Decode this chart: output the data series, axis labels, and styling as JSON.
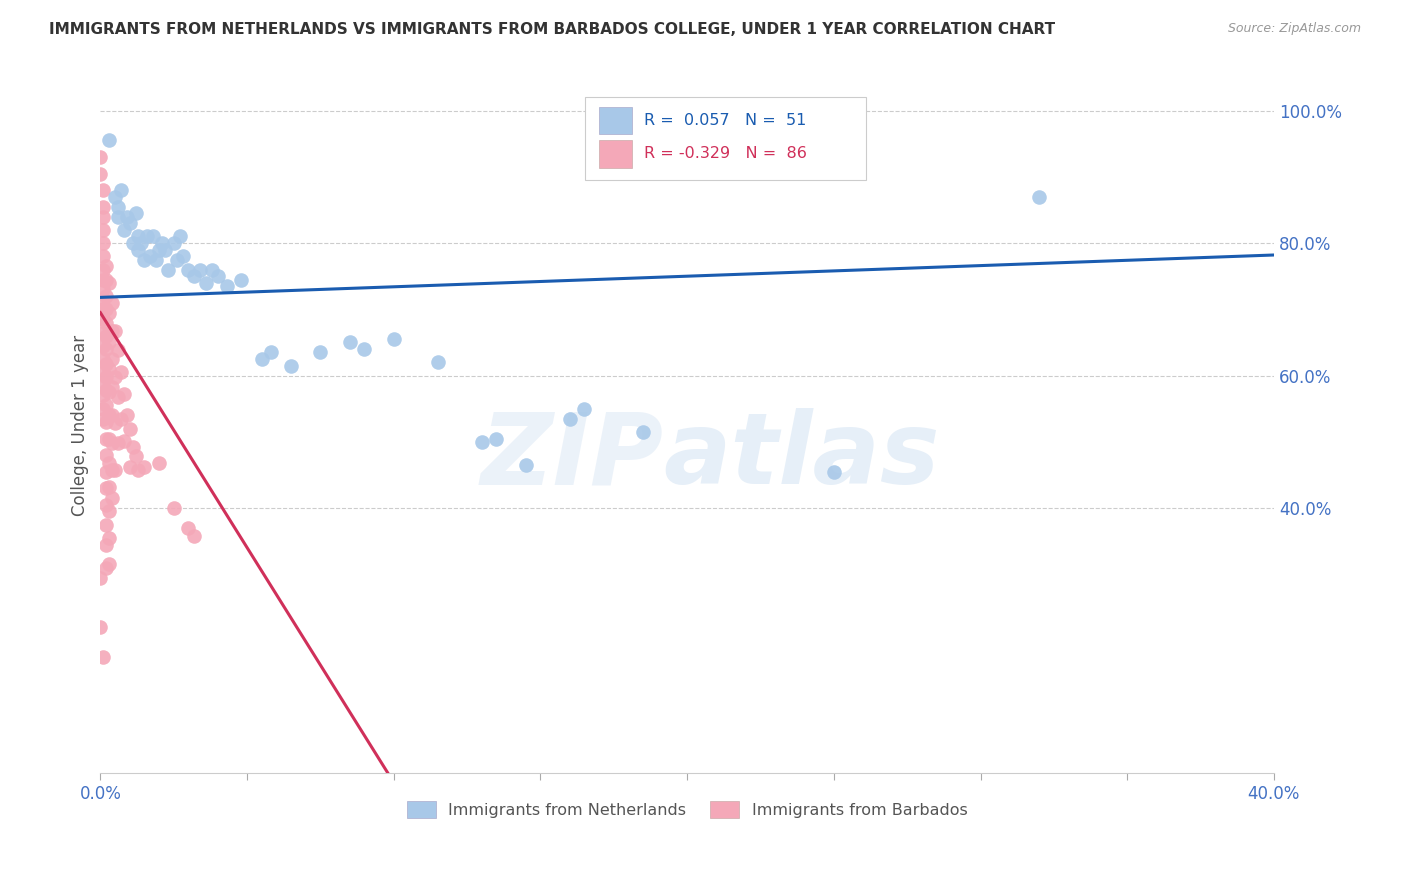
{
  "title": "IMMIGRANTS FROM NETHERLANDS VS IMMIGRANTS FROM BARBADOS COLLEGE, UNDER 1 YEAR CORRELATION CHART",
  "source": "Source: ZipAtlas.com",
  "ylabel": "College, Under 1 year",
  "xlim": [
    0.0,
    0.4
  ],
  "ylim": [
    0.0,
    1.05
  ],
  "netherlands_R": 0.057,
  "netherlands_N": 51,
  "barbados_R": -0.329,
  "barbados_N": 86,
  "netherlands_color": "#a8c8e8",
  "barbados_color": "#f4a8b8",
  "netherlands_line_color": "#1a5cb0",
  "barbados_line_color": "#d0305a",
  "netherlands_line_y0": 0.718,
  "netherlands_line_y1": 0.782,
  "barbados_line_y0": 0.695,
  "barbados_line_x_end": 0.098,
  "netherlands_scatter": [
    [
      0.003,
      0.955
    ],
    [
      0.005,
      0.87
    ],
    [
      0.006,
      0.84
    ],
    [
      0.006,
      0.855
    ],
    [
      0.007,
      0.88
    ],
    [
      0.008,
      0.82
    ],
    [
      0.009,
      0.84
    ],
    [
      0.01,
      0.83
    ],
    [
      0.011,
      0.8
    ],
    [
      0.012,
      0.845
    ],
    [
      0.013,
      0.79
    ],
    [
      0.013,
      0.81
    ],
    [
      0.014,
      0.8
    ],
    [
      0.015,
      0.775
    ],
    [
      0.016,
      0.81
    ],
    [
      0.017,
      0.78
    ],
    [
      0.018,
      0.81
    ],
    [
      0.019,
      0.775
    ],
    [
      0.02,
      0.79
    ],
    [
      0.021,
      0.8
    ],
    [
      0.022,
      0.79
    ],
    [
      0.023,
      0.76
    ],
    [
      0.025,
      0.8
    ],
    [
      0.026,
      0.775
    ],
    [
      0.027,
      0.81
    ],
    [
      0.028,
      0.78
    ],
    [
      0.03,
      0.76
    ],
    [
      0.032,
      0.75
    ],
    [
      0.034,
      0.76
    ],
    [
      0.036,
      0.74
    ],
    [
      0.038,
      0.76
    ],
    [
      0.04,
      0.75
    ],
    [
      0.043,
      0.735
    ],
    [
      0.048,
      0.745
    ],
    [
      0.055,
      0.625
    ],
    [
      0.058,
      0.635
    ],
    [
      0.065,
      0.615
    ],
    [
      0.075,
      0.635
    ],
    [
      0.085,
      0.65
    ],
    [
      0.09,
      0.64
    ],
    [
      0.1,
      0.655
    ],
    [
      0.115,
      0.62
    ],
    [
      0.13,
      0.5
    ],
    [
      0.135,
      0.505
    ],
    [
      0.145,
      0.465
    ],
    [
      0.16,
      0.535
    ],
    [
      0.165,
      0.55
    ],
    [
      0.185,
      0.515
    ],
    [
      0.25,
      0.455
    ],
    [
      0.32,
      0.87
    ]
  ],
  "barbados_scatter": [
    [
      0.0,
      0.93
    ],
    [
      0.0,
      0.905
    ],
    [
      0.001,
      0.88
    ],
    [
      0.001,
      0.855
    ],
    [
      0.001,
      0.84
    ],
    [
      0.001,
      0.82
    ],
    [
      0.001,
      0.8
    ],
    [
      0.001,
      0.78
    ],
    [
      0.001,
      0.76
    ],
    [
      0.001,
      0.745
    ],
    [
      0.001,
      0.73
    ],
    [
      0.001,
      0.715
    ],
    [
      0.001,
      0.7
    ],
    [
      0.001,
      0.685
    ],
    [
      0.001,
      0.665
    ],
    [
      0.001,
      0.645
    ],
    [
      0.001,
      0.625
    ],
    [
      0.001,
      0.605
    ],
    [
      0.001,
      0.59
    ],
    [
      0.001,
      0.57
    ],
    [
      0.001,
      0.55
    ],
    [
      0.001,
      0.535
    ],
    [
      0.002,
      0.765
    ],
    [
      0.002,
      0.745
    ],
    [
      0.002,
      0.72
    ],
    [
      0.002,
      0.7
    ],
    [
      0.002,
      0.68
    ],
    [
      0.002,
      0.66
    ],
    [
      0.002,
      0.64
    ],
    [
      0.002,
      0.618
    ],
    [
      0.002,
      0.598
    ],
    [
      0.002,
      0.578
    ],
    [
      0.002,
      0.555
    ],
    [
      0.002,
      0.53
    ],
    [
      0.002,
      0.505
    ],
    [
      0.002,
      0.48
    ],
    [
      0.002,
      0.455
    ],
    [
      0.002,
      0.43
    ],
    [
      0.002,
      0.405
    ],
    [
      0.002,
      0.375
    ],
    [
      0.002,
      0.345
    ],
    [
      0.002,
      0.31
    ],
    [
      0.003,
      0.74
    ],
    [
      0.003,
      0.695
    ],
    [
      0.003,
      0.65
    ],
    [
      0.003,
      0.61
    ],
    [
      0.003,
      0.575
    ],
    [
      0.003,
      0.54
    ],
    [
      0.003,
      0.505
    ],
    [
      0.003,
      0.468
    ],
    [
      0.003,
      0.432
    ],
    [
      0.003,
      0.395
    ],
    [
      0.003,
      0.355
    ],
    [
      0.003,
      0.315
    ],
    [
      0.004,
      0.71
    ],
    [
      0.004,
      0.668
    ],
    [
      0.004,
      0.625
    ],
    [
      0.004,
      0.582
    ],
    [
      0.004,
      0.54
    ],
    [
      0.004,
      0.498
    ],
    [
      0.004,
      0.458
    ],
    [
      0.004,
      0.415
    ],
    [
      0.005,
      0.668
    ],
    [
      0.005,
      0.598
    ],
    [
      0.005,
      0.528
    ],
    [
      0.005,
      0.458
    ],
    [
      0.006,
      0.638
    ],
    [
      0.006,
      0.568
    ],
    [
      0.006,
      0.498
    ],
    [
      0.007,
      0.605
    ],
    [
      0.007,
      0.535
    ],
    [
      0.008,
      0.572
    ],
    [
      0.008,
      0.502
    ],
    [
      0.009,
      0.54
    ],
    [
      0.01,
      0.52
    ],
    [
      0.01,
      0.462
    ],
    [
      0.011,
      0.492
    ],
    [
      0.012,
      0.478
    ],
    [
      0.013,
      0.458
    ],
    [
      0.015,
      0.462
    ],
    [
      0.02,
      0.468
    ],
    [
      0.025,
      0.4
    ],
    [
      0.03,
      0.37
    ],
    [
      0.032,
      0.358
    ],
    [
      0.0,
      0.295
    ],
    [
      0.0,
      0.22
    ],
    [
      0.001,
      0.175
    ]
  ],
  "watermark_zip": "ZIP",
  "watermark_atlas": "atlas",
  "legend_netherlands_label": "Immigrants from Netherlands",
  "legend_barbados_label": "Immigrants from Barbados",
  "background_color": "#ffffff",
  "grid_color": "#cccccc",
  "title_color": "#333333",
  "right_axis_label_color": "#4472c4"
}
